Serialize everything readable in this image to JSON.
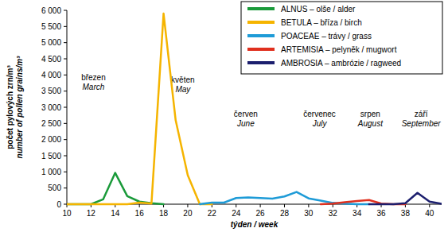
{
  "chart_data": {
    "type": "line",
    "xlabel": "týden / week",
    "ylabel": [
      "počet pylových zrn/m³",
      "number of pollen grains/m³"
    ],
    "x": [
      10,
      11,
      12,
      13,
      14,
      15,
      16,
      17,
      18,
      19,
      20,
      21,
      22,
      23,
      24,
      25,
      26,
      27,
      28,
      29,
      30,
      31,
      32,
      33,
      34,
      35,
      36,
      37,
      38,
      39,
      40,
      41
    ],
    "series": [
      {
        "name": "ALNUS – olše / alder",
        "color": "#1a9a3a",
        "values": [
          0,
          0,
          0,
          150,
          970,
          250,
          80,
          30,
          0,
          null,
          null,
          null,
          null,
          null,
          null,
          null,
          null,
          null,
          null,
          null,
          null,
          null,
          null,
          null,
          null,
          null,
          null,
          null,
          null,
          null,
          null,
          null
        ]
      },
      {
        "name": "BETULA – bříza / birch",
        "color": "#f5b400",
        "values": [
          0,
          0,
          0,
          0,
          0,
          0,
          50,
          20,
          5900,
          2600,
          900,
          0,
          0,
          null,
          null,
          null,
          null,
          null,
          null,
          null,
          null,
          null,
          null,
          null,
          null,
          null,
          null,
          null,
          null,
          null,
          null,
          null
        ]
      },
      {
        "name": "POACEAE – trávy / grass",
        "color": "#1e9bd7",
        "values": [
          null,
          null,
          null,
          null,
          null,
          null,
          null,
          null,
          null,
          null,
          null,
          0,
          50,
          50,
          190,
          210,
          190,
          170,
          240,
          380,
          180,
          110,
          40,
          20,
          0,
          0,
          null,
          null,
          null,
          null,
          null,
          null
        ]
      },
      {
        "name": "ARTEMISIA – pelyněk / mugwort",
        "color": "#e0301e",
        "values": [
          null,
          null,
          null,
          null,
          null,
          null,
          null,
          null,
          null,
          null,
          null,
          null,
          null,
          null,
          null,
          null,
          null,
          null,
          null,
          null,
          null,
          0,
          20,
          60,
          100,
          130,
          20,
          0,
          0,
          null,
          null,
          null
        ]
      },
      {
        "name": "AMBROSIA – ambrózie / ragweed",
        "color": "#1c1f6e",
        "values": [
          null,
          null,
          null,
          null,
          null,
          null,
          null,
          null,
          null,
          null,
          null,
          null,
          null,
          null,
          null,
          null,
          null,
          null,
          null,
          null,
          null,
          null,
          null,
          null,
          null,
          0,
          0,
          0,
          30,
          350,
          80,
          10
        ]
      }
    ],
    "xlim": [
      10,
      41
    ],
    "xticks": [
      10,
      12,
      14,
      16,
      18,
      20,
      22,
      24,
      26,
      28,
      30,
      32,
      34,
      36,
      38,
      40
    ],
    "ylim": [
      0,
      6000
    ],
    "yticks": [
      0,
      500,
      {
        "value": 1000,
        "label": "1 000"
      },
      {
        "value": 1500,
        "label": "1 500"
      },
      {
        "value": 2000,
        "label": "2 000"
      },
      {
        "value": 2500,
        "label": "2 500"
      },
      {
        "value": 3000,
        "label": "3 000"
      },
      {
        "value": 3500,
        "label": "3 500"
      },
      {
        "value": 4000,
        "label": "4 000"
      },
      {
        "value": 4500,
        "label": "4 500"
      },
      {
        "value": 5000,
        "label": "5 000"
      },
      {
        "value": 5500,
        "label": "5 500"
      },
      {
        "value": 6000,
        "label": "6 000"
      }
    ],
    "annotations": [
      {
        "text": "březen",
        "text_en": "March",
        "x": 12.2,
        "y": 3830
      },
      {
        "text": "květen",
        "text_en": "May",
        "x": 19.6,
        "y": 3760
      },
      {
        "text": "červen",
        "text_en": "June",
        "x": 24.8,
        "y": 2700
      },
      {
        "text": "červenec",
        "text_en": "July",
        "x": 30.9,
        "y": 2700
      },
      {
        "text": "srpen",
        "text_en": "August",
        "x": 35.1,
        "y": 2700
      },
      {
        "text": "září",
        "text_en": "September",
        "x": 39.3,
        "y": 2700
      }
    ],
    "grid": false,
    "legend": "upper right"
  }
}
